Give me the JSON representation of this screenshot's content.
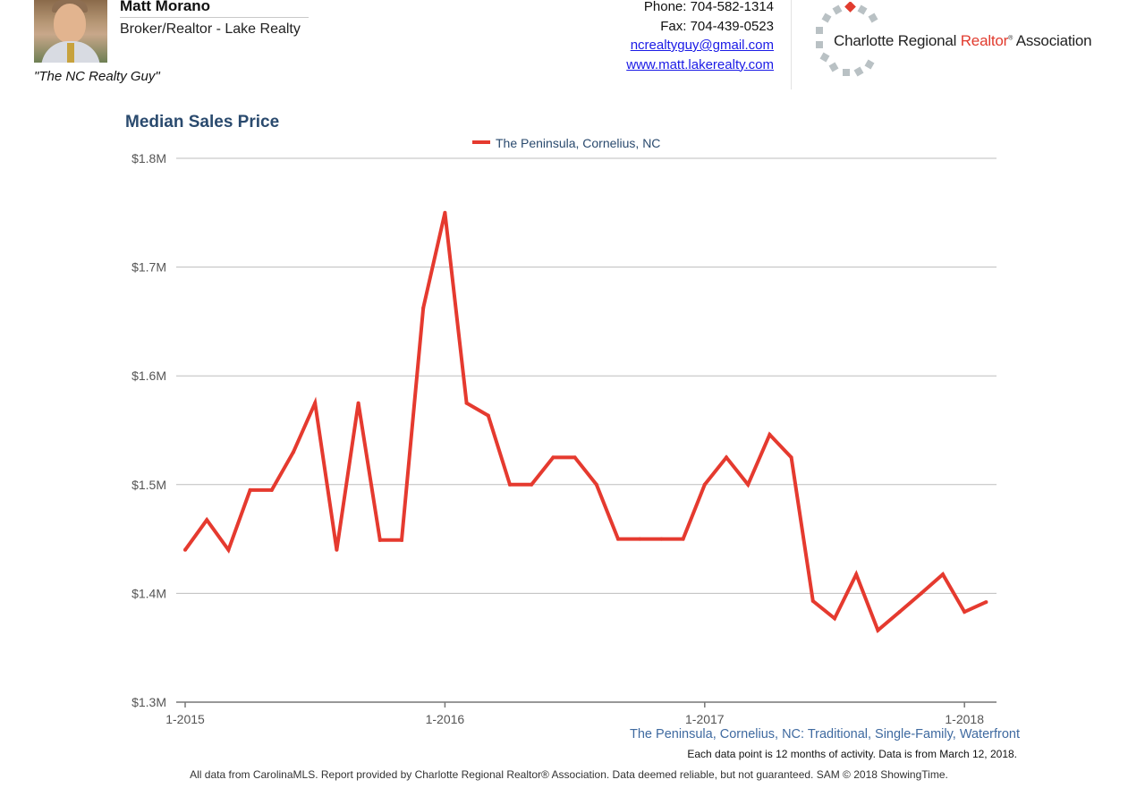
{
  "header": {
    "agent_name": "Matt Morano",
    "agent_title": "Broker/Realtor - Lake Realty",
    "tagline": "\"The NC Realty Guy\"",
    "phone": "Phone: 704-582-1314",
    "fax": "Fax: 704-439-0523",
    "email": "ncrealtyguy@gmail.com",
    "website": "www.matt.lakerealty.com",
    "logo_text_before": "Charlotte Regional ",
    "logo_text_accent": "Realtor",
    "logo_reg": "®",
    "logo_text_after": " Association"
  },
  "colors": {
    "line": "#e53a2f",
    "title": "#2a4a6e",
    "subtitle": "#3f6aa0",
    "grid": "#bdbdbd"
  },
  "chart_data": {
    "type": "line",
    "title": "Median Sales Price",
    "subtitle": "The Peninsula, Cornelius, NC: Traditional, Single-Family, Waterfront",
    "note": "Each data point is 12 months of activity. Data is from March 12, 2018.",
    "legend_position": "top-center",
    "grid": true,
    "x_tick_labels": [
      "1-2015",
      "1-2016",
      "1-2017",
      "1-2018"
    ],
    "y_tick_labels": [
      "$1.3M",
      "$1.4M",
      "$1.5M",
      "$1.6M",
      "$1.7M",
      "$1.8M"
    ],
    "ylim": [
      1300000,
      1800000
    ],
    "x": [
      "1-2015",
      "2-2015",
      "3-2015",
      "4-2015",
      "5-2015",
      "6-2015",
      "7-2015",
      "8-2015",
      "9-2015",
      "10-2015",
      "11-2015",
      "12-2015",
      "1-2016",
      "2-2016",
      "3-2016",
      "4-2016",
      "5-2016",
      "6-2016",
      "7-2016",
      "8-2016",
      "9-2016",
      "10-2016",
      "11-2016",
      "12-2016",
      "1-2017",
      "2-2017",
      "3-2017",
      "4-2017",
      "5-2017",
      "6-2017",
      "7-2017",
      "8-2017",
      "9-2017",
      "10-2017",
      "11-2017",
      "12-2017",
      "1-2018",
      "2-2018"
    ],
    "series": [
      {
        "name": "The Peninsula, Cornelius, NC",
        "values": [
          1440000,
          1467500,
          1440000,
          1495000,
          1495000,
          1530000,
          1575000,
          1440000,
          1575000,
          1449000,
          1449000,
          1662500,
          1750000,
          1575000,
          1563500,
          1500000,
          1500000,
          1525000,
          1525000,
          1500000,
          1450000,
          1450000,
          1450000,
          1450000,
          1500000,
          1525000,
          1500000,
          1546000,
          1525000,
          1393000,
          1377000,
          1417500,
          1366000,
          1383000,
          1400000,
          1417500,
          1383000,
          1392000
        ]
      }
    ]
  },
  "footer": "All data from CarolinaMLS. Report provided by Charlotte Regional Realtor® Association. Data deemed reliable, but not guaranteed. SAM © 2018 ShowingTime."
}
